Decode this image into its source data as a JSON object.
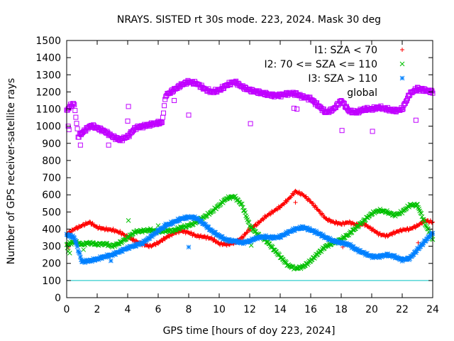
{
  "chart_data": {
    "type": "scatter",
    "title": "NRAYS. SISTED rt 30s mode. 223, 2024. Mask 30 deg",
    "xlabel": "GPS time [hours of doy 223, 2024]",
    "ylabel": "Number of GPS receiver-satellite rays",
    "xlim": [
      0,
      24
    ],
    "ylim": [
      0,
      1500
    ],
    "xticks": [
      0,
      2,
      4,
      6,
      8,
      10,
      12,
      14,
      16,
      18,
      20,
      22,
      24
    ],
    "yticks": [
      0,
      100,
      200,
      300,
      400,
      500,
      600,
      700,
      800,
      900,
      1000,
      1100,
      1200,
      1300,
      1400,
      1500
    ],
    "grid": false,
    "legend_position": "top-right",
    "reference_line": {
      "y": 100,
      "color": "#00c0c0"
    },
    "series": [
      {
        "name": "I1: SZA < 70",
        "marker": "plus",
        "color": "#ff0000",
        "x": [
          0.0,
          0.5,
          1.0,
          1.5,
          2.0,
          2.5,
          3.0,
          3.5,
          4.0,
          4.5,
          5.0,
          5.5,
          6.0,
          6.5,
          7.0,
          7.5,
          8.0,
          8.5,
          9.0,
          9.5,
          10.0,
          10.5,
          11.0,
          11.5,
          12.0,
          12.5,
          13.0,
          13.5,
          14.0,
          14.5,
          15.0,
          15.5,
          16.0,
          16.5,
          17.0,
          17.5,
          18.0,
          18.5,
          19.0,
          19.5,
          20.0,
          20.5,
          21.0,
          21.5,
          22.0,
          22.5,
          23.0,
          23.5,
          24.0
        ],
        "values": [
          370,
          400,
          420,
          440,
          410,
          400,
          395,
          380,
          355,
          330,
          310,
          300,
          320,
          350,
          375,
          390,
          380,
          360,
          355,
          345,
          315,
          310,
          320,
          350,
          400,
          430,
          470,
          500,
          530,
          570,
          620,
          600,
          560,
          510,
          460,
          440,
          430,
          440,
          425,
          430,
          400,
          370,
          360,
          380,
          395,
          400,
          420,
          450,
          440
        ]
      },
      {
        "name": "I2: 70 <= SZA <= 110",
        "marker": "cross",
        "color": "#00c000",
        "x": [
          0.0,
          0.5,
          1.0,
          1.5,
          2.0,
          2.5,
          3.0,
          3.5,
          4.0,
          4.5,
          5.0,
          5.5,
          6.0,
          6.5,
          7.0,
          7.5,
          8.0,
          8.5,
          9.0,
          9.5,
          10.0,
          10.5,
          11.0,
          11.5,
          12.0,
          12.5,
          13.0,
          13.5,
          14.0,
          14.5,
          15.0,
          15.5,
          16.0,
          16.5,
          17.0,
          17.5,
          18.0,
          18.5,
          19.0,
          19.5,
          20.0,
          20.5,
          21.0,
          21.5,
          22.0,
          22.5,
          23.0,
          23.5,
          24.0
        ],
        "values": [
          310,
          325,
          310,
          320,
          310,
          315,
          300,
          320,
          350,
          385,
          390,
          395,
          385,
          390,
          390,
          410,
          420,
          440,
          470,
          500,
          540,
          580,
          590,
          540,
          420,
          370,
          340,
          290,
          240,
          190,
          170,
          180,
          215,
          260,
          300,
          320,
          340,
          370,
          410,
          450,
          490,
          510,
          500,
          480,
          500,
          540,
          540,
          430,
          340
        ]
      },
      {
        "name": "I3: SZA > 110",
        "marker": "star",
        "color": "#0080ff",
        "x": [
          0.0,
          0.5,
          1.0,
          1.5,
          2.0,
          2.5,
          3.0,
          3.5,
          4.0,
          4.5,
          5.0,
          5.5,
          6.0,
          6.5,
          7.0,
          7.5,
          8.0,
          8.5,
          9.0,
          9.5,
          10.0,
          10.5,
          11.0,
          11.5,
          12.0,
          12.5,
          13.0,
          13.5,
          14.0,
          14.5,
          15.0,
          15.5,
          16.0,
          16.5,
          17.0,
          17.5,
          18.0,
          18.5,
          19.0,
          19.5,
          20.0,
          20.5,
          21.0,
          21.5,
          22.0,
          22.5,
          23.0,
          23.5,
          24.0
        ],
        "values": [
          370,
          350,
          210,
          215,
          225,
          240,
          250,
          270,
          290,
          305,
          320,
          355,
          390,
          420,
          440,
          460,
          470,
          465,
          430,
          390,
          360,
          335,
          330,
          320,
          330,
          350,
          355,
          350,
          355,
          380,
          400,
          410,
          395,
          375,
          350,
          330,
          320,
          310,
          280,
          260,
          240,
          240,
          250,
          240,
          220,
          230,
          280,
          330,
          380
        ]
      },
      {
        "name": "global",
        "marker": "square",
        "color": "#c000ff",
        "x": [
          0.0,
          0.25,
          0.5,
          0.75,
          1.0,
          1.25,
          1.5,
          1.75,
          2.0,
          2.5,
          3.0,
          3.5,
          4.0,
          4.5,
          5.0,
          5.5,
          6.0,
          6.25,
          6.5,
          7.0,
          7.5,
          8.0,
          8.5,
          9.0,
          9.5,
          10.0,
          10.5,
          11.0,
          11.5,
          12.0,
          12.5,
          13.0,
          13.5,
          14.0,
          14.5,
          15.0,
          15.5,
          16.0,
          16.5,
          17.0,
          17.5,
          18.0,
          18.5,
          19.0,
          19.5,
          20.0,
          20.5,
          21.0,
          21.5,
          22.0,
          22.5,
          23.0,
          23.5,
          24.0
        ],
        "values": [
          1090,
          1120,
          1130,
          940,
          960,
          980,
          1000,
          1000,
          990,
          970,
          940,
          920,
          940,
          990,
          1000,
          1010,
          1020,
          1020,
          1180,
          1210,
          1240,
          1260,
          1250,
          1220,
          1200,
          1210,
          1240,
          1260,
          1230,
          1210,
          1200,
          1190,
          1180,
          1180,
          1190,
          1190,
          1170,
          1160,
          1120,
          1080,
          1100,
          1150,
          1090,
          1080,
          1100,
          1100,
          1110,
          1100,
          1090,
          1100,
          1190,
          1220,
          1210,
          1200
        ]
      }
    ],
    "outliers": {
      "global": {
        "x": [
          0.1,
          0.15,
          0.9,
          2.75,
          4.0,
          4.05,
          6.1,
          7.05,
          8.0,
          12.05,
          14.9,
          15.1,
          18.05,
          20.05,
          22.9,
          23.1
        ],
        "values": [
          1000,
          980,
          890,
          890,
          1030,
          1115,
          1020,
          1150,
          1065,
          1015,
          1105,
          1100,
          975,
          970,
          1035,
          1205
        ]
      },
      "I1: SZA < 70": {
        "x": [
          0.05,
          0.1,
          15.0,
          18.1,
          23.05
        ],
        "values": [
          310,
          290,
          555,
          295,
          320
        ]
      },
      "I2: 70 <= SZA <= 110": {
        "x": [
          0.05,
          0.1,
          0.2,
          1.1,
          4.05,
          6.0,
          12.1
        ],
        "values": [
          290,
          270,
          260,
          280,
          450,
          420,
          305
        ]
      },
      "I3: SZA > 110": {
        "x": [
          0.1,
          0.6,
          2.9,
          6.5,
          8.0
        ],
        "values": [
          355,
          330,
          215,
          430,
          295
        ]
      }
    }
  }
}
